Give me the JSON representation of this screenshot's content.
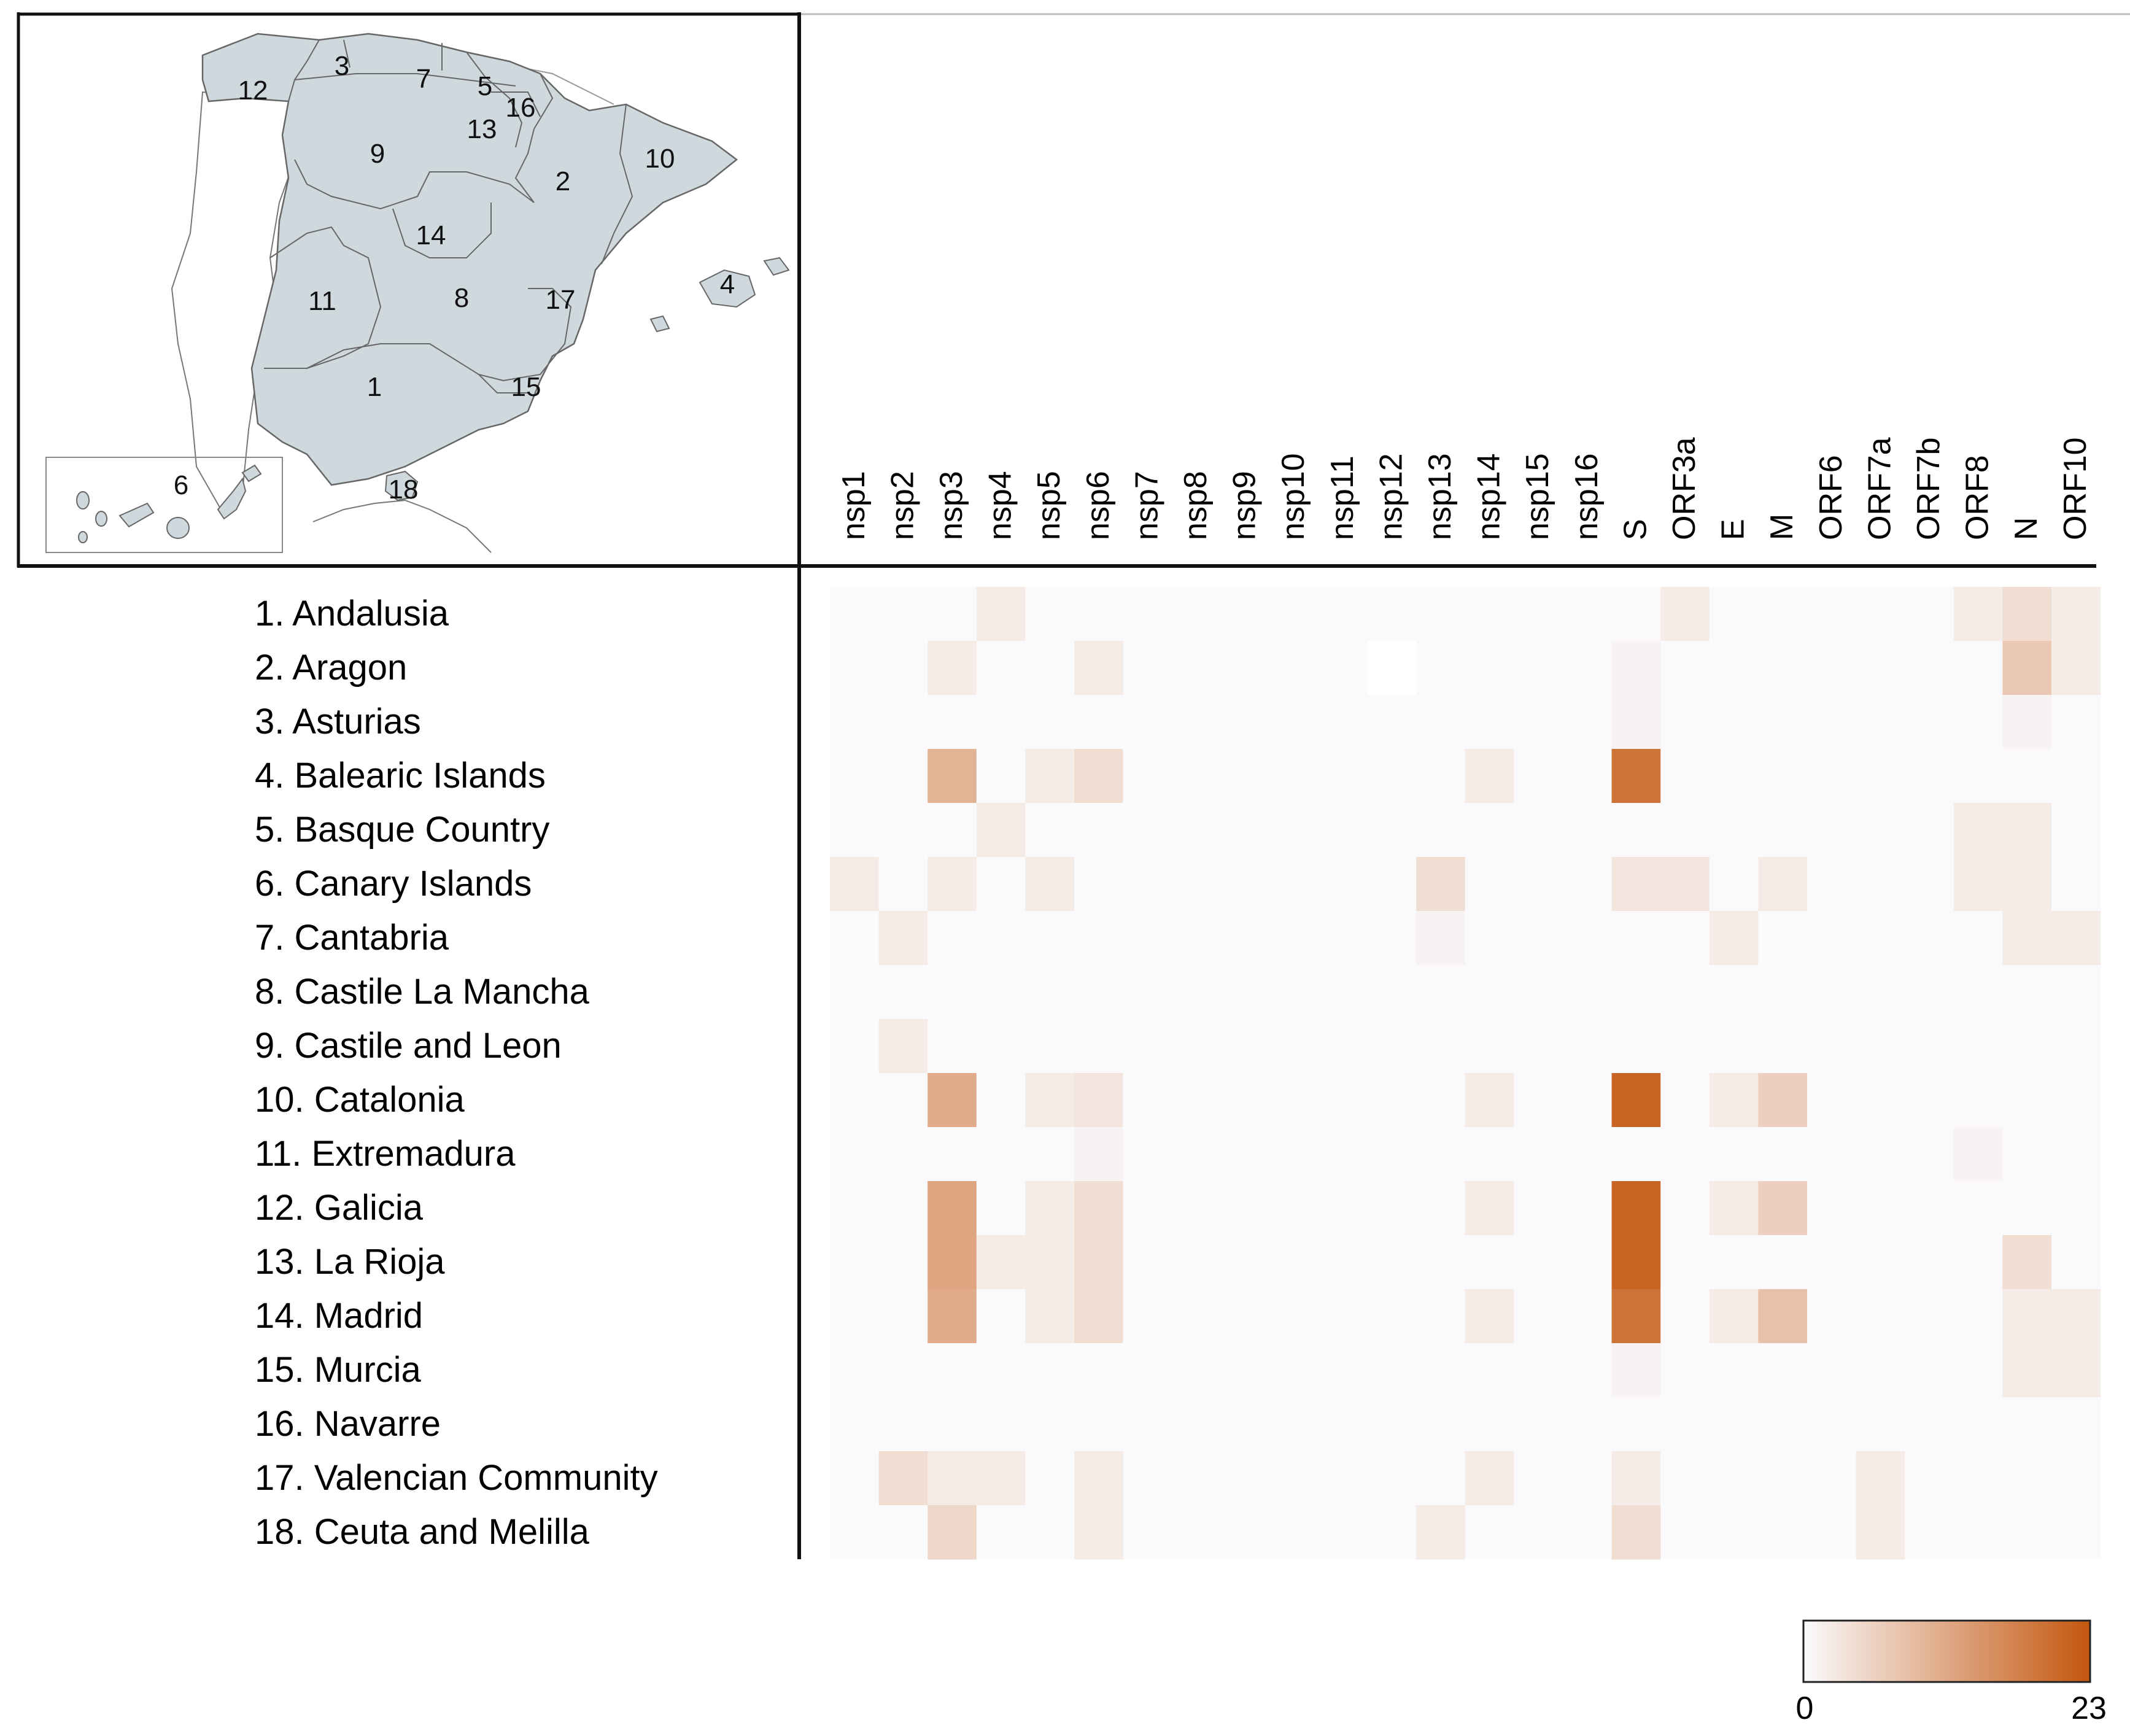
{
  "chart_data": {
    "type": "heatmap",
    "title": "",
    "columns": [
      "nsp1",
      "nsp2",
      "nsp3",
      "nsp4",
      "nsp5",
      "nsp6",
      "nsp7",
      "nsp8",
      "nsp9",
      "nsp10",
      "nsp11",
      "nsp12",
      "nsp13",
      "nsp14",
      "nsp15",
      "nsp16",
      "S",
      "ORF3a",
      "E",
      "M",
      "ORF6",
      "ORF7a",
      "ORF7b",
      "ORF8",
      "N",
      "ORF10"
    ],
    "rows": [
      "1. Andalusia",
      "2. Aragon",
      "3. Asturias",
      "4. Balearic Islands",
      "5. Basque Country",
      "6. Canary Islands",
      "7. Cantabria",
      "8. Castile La Mancha",
      "9. Castile and Leon",
      "10. Catalonia",
      "11. Extremadura",
      "12. Galicia",
      "13. La Rioja",
      "14. Madrid",
      "15. Murcia",
      "16. Navarre",
      "17. Valencian Community",
      "18. Ceuta and Melilla"
    ],
    "values": [
      [
        0,
        0,
        0,
        2,
        0,
        0,
        0,
        0,
        0,
        0,
        0,
        0,
        0,
        0,
        0,
        0,
        0,
        2,
        0,
        0,
        0,
        0,
        0,
        2,
        4,
        2
      ],
      [
        0,
        0,
        2,
        0,
        0,
        2,
        0,
        0,
        0,
        0,
        0,
        -1,
        0,
        0,
        0,
        0,
        1,
        0,
        0,
        0,
        0,
        0,
        0,
        0,
        7,
        2
      ],
      [
        0,
        0,
        0,
        0,
        0,
        0,
        0,
        0,
        0,
        0,
        0,
        0,
        0,
        0,
        0,
        0,
        1,
        0,
        0,
        0,
        0,
        0,
        0,
        0,
        1,
        0
      ],
      [
        0,
        0,
        10,
        0,
        2,
        4,
        0,
        0,
        0,
        0,
        0,
        0,
        0,
        2,
        0,
        0,
        19,
        0,
        0,
        0,
        0,
        0,
        0,
        0,
        0,
        0
      ],
      [
        0,
        0,
        0,
        2,
        0,
        0,
        0,
        0,
        0,
        0,
        0,
        0,
        0,
        0,
        0,
        0,
        0,
        0,
        0,
        0,
        0,
        0,
        0,
        2,
        2,
        0
      ],
      [
        2,
        0,
        2,
        0,
        2,
        0,
        0,
        0,
        0,
        0,
        0,
        0,
        4,
        0,
        0,
        0,
        3,
        3,
        0,
        2,
        0,
        0,
        0,
        2,
        2,
        0
      ],
      [
        0,
        2,
        0,
        0,
        0,
        0,
        0,
        0,
        0,
        0,
        0,
        0,
        1,
        0,
        0,
        0,
        0,
        0,
        2,
        0,
        0,
        0,
        0,
        0,
        2,
        2
      ],
      [
        0,
        0,
        0,
        0,
        0,
        0,
        0,
        0,
        0,
        0,
        0,
        0,
        0,
        0,
        0,
        0,
        0,
        0,
        0,
        0,
        0,
        0,
        0,
        0,
        0,
        0
      ],
      [
        0,
        2,
        0,
        0,
        0,
        0,
        0,
        0,
        0,
        0,
        0,
        0,
        0,
        0,
        0,
        0,
        0,
        0,
        0,
        0,
        0,
        0,
        0,
        0,
        0,
        0
      ],
      [
        0,
        0,
        11,
        0,
        2,
        3,
        0,
        0,
        0,
        0,
        0,
        0,
        0,
        2,
        0,
        0,
        21,
        0,
        2,
        6,
        0,
        0,
        0,
        0,
        0,
        0
      ],
      [
        0,
        0,
        0,
        0,
        0,
        1,
        0,
        0,
        0,
        0,
        0,
        0,
        0,
        0,
        0,
        0,
        0,
        0,
        0,
        0,
        0,
        0,
        0,
        1,
        0,
        0
      ],
      [
        0,
        0,
        12,
        0,
        2,
        4,
        0,
        0,
        0,
        0,
        0,
        0,
        0,
        2,
        0,
        0,
        21,
        0,
        2,
        6,
        0,
        0,
        0,
        0,
        0,
        0
      ],
      [
        0,
        0,
        12,
        2,
        2,
        4,
        0,
        0,
        0,
        0,
        0,
        0,
        0,
        0,
        0,
        0,
        21,
        0,
        0,
        0,
        0,
        0,
        0,
        0,
        4,
        0
      ],
      [
        0,
        0,
        11,
        0,
        2,
        4,
        0,
        0,
        0,
        0,
        0,
        0,
        0,
        2,
        0,
        0,
        19,
        0,
        2,
        8,
        0,
        0,
        0,
        0,
        2,
        2
      ],
      [
        0,
        0,
        0,
        0,
        0,
        0,
        0,
        0,
        0,
        0,
        0,
        0,
        0,
        0,
        0,
        0,
        1,
        0,
        0,
        0,
        0,
        0,
        0,
        0,
        2,
        2
      ],
      [
        0,
        0,
        0,
        0,
        0,
        0,
        0,
        0,
        0,
        0,
        0,
        0,
        0,
        0,
        0,
        0,
        0,
        0,
        0,
        0,
        0,
        0,
        0,
        0,
        0,
        0
      ],
      [
        0,
        4,
        2,
        2,
        0,
        2,
        0,
        0,
        0,
        0,
        0,
        0,
        0,
        2,
        0,
        0,
        2,
        0,
        0,
        0,
        0,
        2,
        0,
        0,
        0,
        0
      ],
      [
        0,
        0,
        5,
        0,
        0,
        2,
        0,
        0,
        0,
        0,
        0,
        0,
        2,
        0,
        0,
        0,
        4,
        0,
        0,
        0,
        0,
        2,
        0,
        0,
        0,
        0
      ]
    ],
    "colorscale": {
      "min": 0,
      "max": 23,
      "low_color": "#fafafc",
      "high_color": "#c4570f",
      "blank_color": "#ffffff",
      "min_label": "0",
      "max_label": "23"
    }
  },
  "map": {
    "region_fill": "#cfd8dc",
    "numbers": [
      "1",
      "2",
      "3",
      "4",
      "5",
      "6",
      "7",
      "8",
      "9",
      "10",
      "11",
      "12",
      "13",
      "14",
      "15",
      "16",
      "17",
      "18"
    ]
  }
}
